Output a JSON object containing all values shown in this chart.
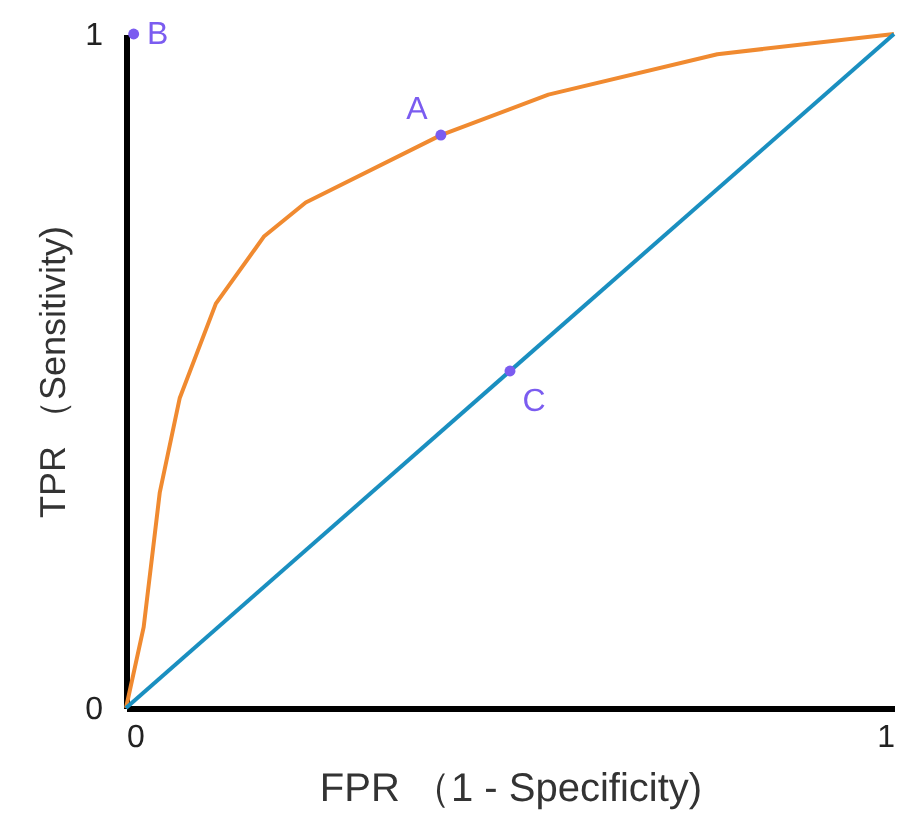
{
  "chart_data": {
    "type": "line",
    "xlabel": "FPR （1 - Specificity)",
    "ylabel": "TPR （Sensitivity)",
    "xlim": [
      0,
      1
    ],
    "ylim": [
      0,
      1
    ],
    "xticks": [
      0,
      1
    ],
    "yticks": [
      0,
      1
    ],
    "series": [
      {
        "color": "#f08a30",
        "x": [
          0,
          0.023,
          0.044,
          0.07,
          0.117,
          0.18,
          0.234,
          0.41,
          0.55,
          0.77,
          1
        ],
        "values": [
          0,
          0.12,
          0.32,
          0.46,
          0.6,
          0.7,
          0.75,
          0.85,
          0.91,
          0.97,
          1
        ]
      },
      {
        "color": "#1a8fc0",
        "x": [
          0,
          1
        ],
        "values": [
          0,
          1
        ]
      },
      {
        "type": "scatter",
        "color": "#7b5cf0",
        "marker": "circle",
        "x": [
          0.41,
          0.01,
          0.5
        ],
        "values": [
          0.85,
          1,
          0.5
        ]
      }
    ],
    "annotations": [
      {
        "text": "A",
        "x": 0.41,
        "y": 0.85
      },
      {
        "text": "B",
        "x": 0.01,
        "y": 1
      },
      {
        "text": "C",
        "x": 0.5,
        "y": 0.5
      }
    ]
  }
}
